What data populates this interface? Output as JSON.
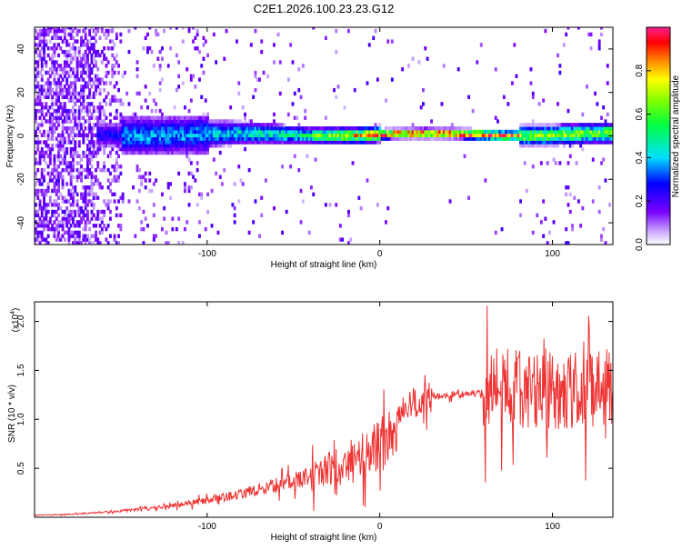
{
  "title": "C2E1.2026.100.23.23.G12",
  "chart_data": [
    {
      "type": "heatmap",
      "title": "C2E1.2026.100.23.23.G12",
      "xlabel": "Height of straight line (km)",
      "ylabel": "Frequency (Hz)",
      "xlim": [
        -200,
        135
      ],
      "ylim": [
        -50,
        50
      ],
      "x_ticks": [
        -100,
        0,
        100
      ],
      "y_ticks": [
        -40,
        -20,
        0,
        20,
        40
      ],
      "signal_center_hz": 0,
      "colorbar": {
        "label": "Normalized spectral amplitude",
        "range": [
          0,
          1
        ],
        "ticks": [
          0.0,
          0.2,
          0.4,
          0.6,
          0.8
        ]
      }
    },
    {
      "type": "line",
      "title": "",
      "xlabel": "Height of straight line (km)",
      "ylabel": "SNR (10 * v/v)",
      "scale_label": "(x10",
      "scale_exponent": "4",
      "xlim": [
        -200,
        135
      ],
      "ylim": [
        0,
        2.2
      ],
      "x_ticks": [
        -100,
        0,
        100
      ],
      "y_ticks": [
        0.5,
        1.0,
        1.5,
        2.0
      ],
      "series": [
        {
          "name": "SNR",
          "color": "#ee3333",
          "x": [
            -200,
            -180,
            -160,
            -140,
            -120,
            -100,
            -80,
            -60,
            -40,
            -20,
            -10,
            0,
            5,
            8,
            10,
            15,
            20,
            30,
            40,
            50,
            60,
            70,
            80,
            90,
            95,
            100,
            110,
            120,
            135
          ],
          "values": [
            0.02,
            0.03,
            0.05,
            0.08,
            0.12,
            0.17,
            0.24,
            0.33,
            0.42,
            0.55,
            0.62,
            0.72,
            0.85,
            0.95,
            1.0,
            1.1,
            1.17,
            1.22,
            1.25,
            1.26,
            1.27,
            1.3,
            1.32,
            1.34,
            1.25,
            1.32,
            1.3,
            1.28,
            1.33
          ]
        }
      ]
    }
  ]
}
